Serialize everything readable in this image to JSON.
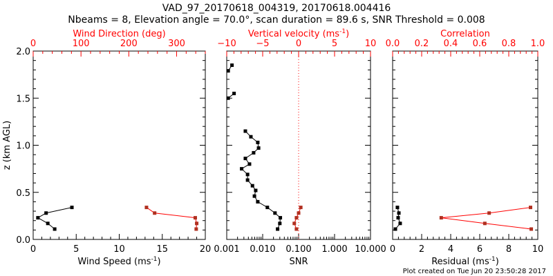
{
  "title_line1": "VAD_97_20170618_004319, 20170618.004416",
  "title_line2": "Nbeams = 8, Elevation angle = 70.0°, scan duration = 89.6 s, SNR Threshold = 0.008",
  "footer": "Plot created on Tue Jun 20 23:50:28 2017",
  "colors": {
    "primary": "#000000",
    "secondary": "#ff0000",
    "marker_secondary": "#b03020"
  },
  "chart_data": [
    {
      "type": "line",
      "name": "wind",
      "ylabel": "z (km AGL)",
      "ylim": [
        0,
        2.0
      ],
      "yticks": [
        "0.0",
        "0.5",
        "1.0",
        "1.5",
        "2.0"
      ],
      "xlabel": "Wind Speed (ms",
      "xlabel_sup": "-1",
      "xlim": [
        0,
        20
      ],
      "xticks": [
        "0",
        "5",
        "10",
        "15",
        "20"
      ],
      "top_label": "Wind Direction (deg)",
      "top_lim": [
        0,
        360
      ],
      "top_ticks": [
        "0",
        "100",
        "200",
        "300"
      ],
      "series": [
        {
          "name": "Wind Speed",
          "axis": "bottom",
          "z": [
            0.34,
            0.28,
            0.23,
            0.17,
            0.11
          ],
          "values": [
            4.5,
            1.5,
            0.55,
            1.7,
            2.5
          ]
        },
        {
          "name": "Wind Direction",
          "axis": "top",
          "z": [
            0.34,
            0.28,
            0.23,
            0.17,
            0.11
          ],
          "values": [
            237,
            254,
            339,
            342,
            341
          ]
        }
      ]
    },
    {
      "type": "line",
      "name": "snr",
      "ylim": [
        0,
        2.0
      ],
      "xlabel": "SNR",
      "xscale": "log",
      "xlim": [
        0.001,
        10
      ],
      "xticks": [
        "0.001",
        "0.010",
        "0.100",
        "1.000",
        "10.000"
      ],
      "top_label": "Vertical velocity (ms",
      "top_label_sup": "-1",
      "top_lim": [
        -10,
        10
      ],
      "top_ticks": [
        "−10",
        "−5",
        "0",
        "5",
        "10"
      ],
      "reference_line": {
        "axis": "top",
        "value": 0
      },
      "series": [
        {
          "name": "SNR",
          "axis": "bottom",
          "z": [
            1.85,
            1.79,
            null,
            1.55,
            1.5,
            null,
            1.15,
            1.09,
            1.03,
            0.97,
            0.92,
            0.86,
            0.8,
            0.75,
            0.69,
            0.63,
            0.57,
            0.52,
            0.46,
            0.4,
            0.34,
            0.28,
            0.23,
            0.17,
            0.11
          ],
          "values": [
            0.0014,
            0.0011,
            null,
            0.0016,
            0.0011,
            null,
            0.0033,
            0.0047,
            0.0073,
            0.0077,
            0.0056,
            0.0033,
            0.0043,
            0.0026,
            0.0038,
            0.0038,
            0.0052,
            0.0064,
            0.0059,
            0.0073,
            0.0135,
            0.022,
            0.031,
            0.03,
            0.026
          ]
        },
        {
          "name": "Vertical velocity",
          "axis": "top",
          "z": [
            0.34,
            0.28,
            0.23,
            0.17,
            0.11
          ],
          "values": [
            0.3,
            0.0,
            -0.3,
            -0.6,
            -0.3
          ]
        }
      ]
    },
    {
      "type": "line",
      "name": "residual",
      "ylim": [
        0,
        2.0
      ],
      "xlabel": "Residual (ms",
      "xlabel_sup": "-1",
      "xlim": [
        0,
        10
      ],
      "xticks": [
        "0",
        "2",
        "4",
        "6",
        "8",
        "10"
      ],
      "top_label": "Correlation",
      "top_lim": [
        0,
        1
      ],
      "top_ticks": [
        "0.0",
        "0.2",
        "0.4",
        "0.6",
        "0.8",
        "1.0"
      ],
      "series": [
        {
          "name": "Residual",
          "axis": "bottom",
          "z": [
            0.34,
            0.28,
            0.23,
            0.17,
            0.11
          ],
          "values": [
            0.33,
            0.43,
            0.38,
            0.52,
            0.19
          ]
        },
        {
          "name": "Correlation",
          "axis": "top",
          "z": [
            0.34,
            0.28,
            0.23,
            0.17,
            0.11
          ],
          "values": [
            0.95,
            0.665,
            0.335,
            0.635,
            0.955
          ]
        }
      ]
    }
  ]
}
